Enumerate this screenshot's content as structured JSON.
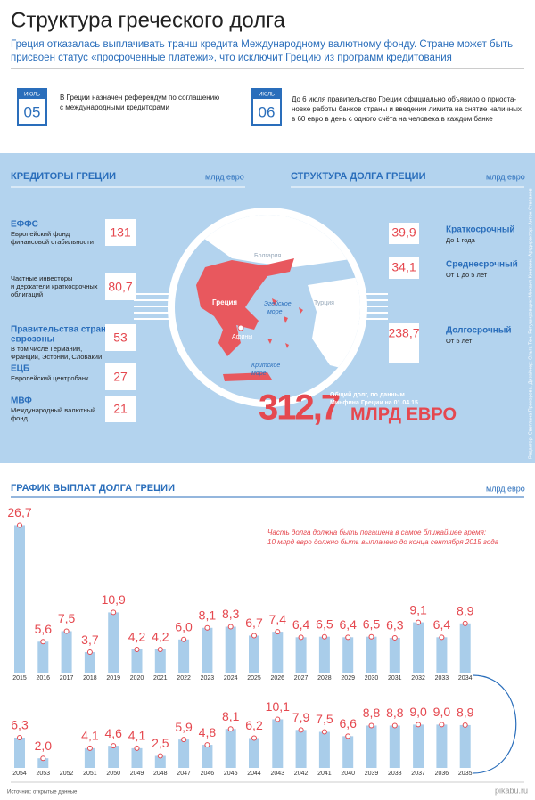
{
  "header": {
    "title": "Структура греческого долга",
    "subtitle": [
      "Греция отказалась выплачивать транш кредита Международному валютному фонду. Стране может быть",
      "присвоен статус «просроченные платежи», что исключит Грецию из программ кредитования"
    ]
  },
  "events": [
    {
      "month": "ИЮЛЬ",
      "day": "05",
      "text": [
        "В Греции назначен референдум по соглашению",
        "с международными кредиторами"
      ]
    },
    {
      "month": "ИЮЛЬ",
      "day": "06",
      "text": [
        "До 6 июля правительство Греции официально объявило о приоста-",
        "новке работы банков страны и введении лимита на снятие наличных",
        "в 60 евро в день с одного счёта на человека в каждом банке"
      ]
    }
  ],
  "creditors": {
    "title": "КРЕДИТОРЫ ГРЕЦИИ",
    "unit": "млрд евро",
    "items": [
      {
        "name": [
          "ЕФФС"
        ],
        "desc": [
          "Европейский фонд",
          "финансовой стабильности"
        ],
        "value": "131"
      },
      {
        "desc": [
          "Частные инвесторы",
          "и держатели краткосрочных",
          "облигаций"
        ],
        "value": "80,7"
      },
      {
        "name": [
          "Правительства стран",
          "еврозоны"
        ],
        "desc": [
          "В том числе Германии,",
          "Франции, Эстонии, Словакии"
        ],
        "value": "53"
      },
      {
        "name": [
          "ЕЦБ"
        ],
        "desc": [
          "Европейский центробанк"
        ],
        "value": "27"
      },
      {
        "name": [
          "МВФ"
        ],
        "desc": [
          "Международный валютный",
          "фонд"
        ],
        "value": "21"
      }
    ]
  },
  "structure": {
    "title": "СТРУКТУРА ДОЛГА ГРЕЦИИ",
    "unit": "млрд евро",
    "items": [
      {
        "value": "39,9",
        "name": "Краткосрочный",
        "desc": "До 1 года"
      },
      {
        "value": "34,1",
        "name": "Среднесрочный",
        "desc": "От 1 до 5 лет"
      },
      {
        "value": "238,7",
        "name": "Долгосрочный",
        "desc": "От 5 лет"
      }
    ]
  },
  "map": {
    "bulgaria": "Болгария",
    "greece": "Греция",
    "aegean": [
      "Эгейское",
      "море"
    ],
    "turkey": "Турция",
    "athens": "Афины",
    "cretan": [
      "Критское",
      "море"
    ]
  },
  "total": {
    "value": "312,7",
    "unit": "МЛРД ЕВРО",
    "note": [
      "Общий долг, по данным",
      "Минфина Греции на 01.04.15"
    ]
  },
  "credits": "Редактор: Светлана Прохорова. Дизайнер: Ольга Тен. Ретушировщик: Михаил Киняхин. Артдиректор: Антон Степанов",
  "chart_data": [
    {
      "type": "bar",
      "title": "ГРАФИК ВЫПЛАТ ДОЛГА ГРЕЦИИ",
      "unit": "млрд евро",
      "annotation": [
        "Часть долга должна быть погашена в самое ближайшее время:",
        "10 млрд евро должно быть выплачено до конца сентября 2015 года"
      ],
      "color": "#a9cdea",
      "categories": [
        "2015",
        "2016",
        "2017",
        "2018",
        "2019",
        "2020",
        "2021",
        "2022",
        "2023",
        "2024",
        "2025",
        "2026",
        "2027",
        "2028",
        "2029",
        "2030",
        "2031",
        "2032",
        "2033",
        "2034"
      ],
      "values": [
        26.7,
        5.6,
        7.5,
        3.7,
        10.9,
        4.2,
        4.2,
        6.0,
        8.1,
        8.3,
        6.7,
        7.4,
        6.4,
        6.5,
        6.4,
        6.5,
        6.3,
        9.1,
        6.4,
        8.9
      ],
      "value_labels": [
        "26,7",
        "5,6",
        "7,5",
        "3,7",
        "10,9",
        "4,2",
        "4,2",
        "6,0",
        "8,1",
        "8,3",
        "6,7",
        "7,4",
        "6,4",
        "6,5",
        "6,4",
        "6,5",
        "6,3",
        "9,1",
        "6,4",
        "8,9"
      ]
    },
    {
      "type": "bar",
      "color": "#a9cdea",
      "categories": [
        "2054",
        "2053",
        "2052",
        "2051",
        "2050",
        "2049",
        "2048",
        "2047",
        "2046",
        "2045",
        "2044",
        "2043",
        "2042",
        "2041",
        "2040",
        "2039",
        "2038",
        "2037",
        "2036",
        "2035"
      ],
      "values": [
        6.3,
        2.0,
        null,
        4.1,
        4.6,
        4.1,
        2.5,
        5.9,
        4.8,
        8.1,
        6.2,
        10.1,
        7.9,
        7.5,
        6.6,
        8.8,
        8.8,
        9.0,
        9.0,
        8.9
      ],
      "value_labels": [
        "6,3",
        "2,0",
        null,
        "4,1",
        "4,6",
        "4,1",
        "2,5",
        "5,9",
        "4,8",
        "8,1",
        "6,2",
        "10,1",
        "7,9",
        "7,5",
        "6,6",
        "8,8",
        "8,8",
        "9,0",
        "9,0",
        "8,9"
      ]
    }
  ],
  "source": "Источник: открытые данные",
  "watermark": "pikabu.ru"
}
